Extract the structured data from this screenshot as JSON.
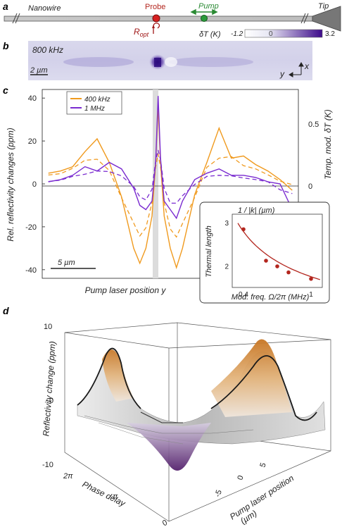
{
  "panel_labels": {
    "a": "a",
    "b": "b",
    "c": "c",
    "d": "d"
  },
  "panel_a": {
    "nanowire_label": "Nanowire",
    "probe_label": "Probe",
    "pump_label": "Pump",
    "tip_label": "Tip",
    "r_opt_label": "R",
    "r_opt_sub": "opt",
    "probe_color": "#d62020",
    "pump_color": "#2a9a3a"
  },
  "panel_b": {
    "frequency_label": "800 kHz",
    "colorbar_title": "δT (K)",
    "colorbar_min": "-1.2",
    "colorbar_zero": "0",
    "colorbar_max": "3.2",
    "scalebar_label": "2 µm",
    "axis_x": "x",
    "axis_y": "y"
  },
  "panel_c": {
    "scalebar_label": "5 µm",
    "right_axis_label": "Temp. mod. δT (K)",
    "right_ticks": [
      "0.5",
      "0"
    ],
    "chart_data": {
      "type": "line",
      "xlabel": "Pump laser position y",
      "ylabel": "Rel. reflectivity changes  (ppm)",
      "y_ticks": [
        "40",
        "20",
        "0",
        "-20",
        "-40"
      ],
      "ylim": [
        -44,
        44
      ],
      "legend_placement": "top-left",
      "series": [
        {
          "name": "400 kHz",
          "color": "#f09a1e",
          "x": [
            -9,
            -8,
            -7,
            -6,
            -5,
            -4,
            -3,
            -2,
            -1.5,
            -1,
            -0.5,
            -0.2,
            0,
            0.2,
            0.5,
            1,
            1.5,
            2,
            3,
            4,
            5,
            6,
            7,
            8,
            9,
            10,
            11
          ],
          "y": [
            5,
            6,
            8,
            15,
            21,
            10,
            -6,
            -30,
            -37,
            -30,
            -15,
            10,
            36,
            10,
            -15,
            -30,
            -39,
            -30,
            -5,
            10,
            26,
            12,
            13,
            9,
            6,
            2,
            -3
          ]
        },
        {
          "name": "1 MHz",
          "color": "#7a2bd0",
          "x": [
            -9,
            -8,
            -7,
            -6,
            -5,
            -4,
            -3,
            -2,
            -1.5,
            -1,
            -0.5,
            -0.2,
            0,
            0.2,
            0.5,
            1,
            1.5,
            2,
            3,
            4,
            5,
            6,
            7,
            8,
            9,
            10,
            11
          ],
          "y": [
            1,
            2,
            4,
            8,
            6,
            10,
            7,
            -2,
            -10,
            -12,
            -8,
            10,
            41,
            12,
            -8,
            -12,
            -16,
            -8,
            2,
            5,
            7,
            4,
            4,
            3,
            1,
            0,
            -12
          ]
        }
      ],
      "fits": [
        {
          "for": "400 kHz",
          "style": "dashed"
        },
        {
          "for": "1 MHz",
          "style": "dashed"
        }
      ]
    }
  },
  "inset": {
    "title": "1 / |k|  (µm)",
    "chart_data": {
      "type": "scatter",
      "xlabel": "Mod. freq. Ω/2π (MHz)",
      "ylabel": "Thermal length",
      "x_ticks": [
        "0.4",
        "1"
      ],
      "y_ticks": [
        "3",
        "2"
      ],
      "points": [
        {
          "x": 0.4,
          "y": 2.85
        },
        {
          "x": 0.6,
          "y": 2.12
        },
        {
          "x": 0.7,
          "y": 1.99
        },
        {
          "x": 0.8,
          "y": 1.85
        },
        {
          "x": 1.0,
          "y": 1.7
        }
      ],
      "fit": "curve"
    }
  },
  "panel_d": {
    "z_label": "Reflectivity change (ppm)",
    "z_ticks": [
      "10",
      "0",
      "-10"
    ],
    "phase_label": "Phase delay",
    "phase_ticks": [
      "2π",
      "π",
      "0"
    ],
    "pos_label": "Pump laser position",
    "pos_unit": "(µm)",
    "pos_ticks": [
      "5",
      "0",
      "-5"
    ],
    "chart_data": {
      "type": "surface",
      "x_label": "Pump laser position (µm)",
      "y_label": "Phase delay",
      "z_label": "Reflectivity change (ppm)",
      "zlim": [
        -10,
        10
      ],
      "colors": {
        "positive": "#c87a2a",
        "negative": "#5a1f7a",
        "neutral": "#dcdcdc"
      }
    }
  }
}
